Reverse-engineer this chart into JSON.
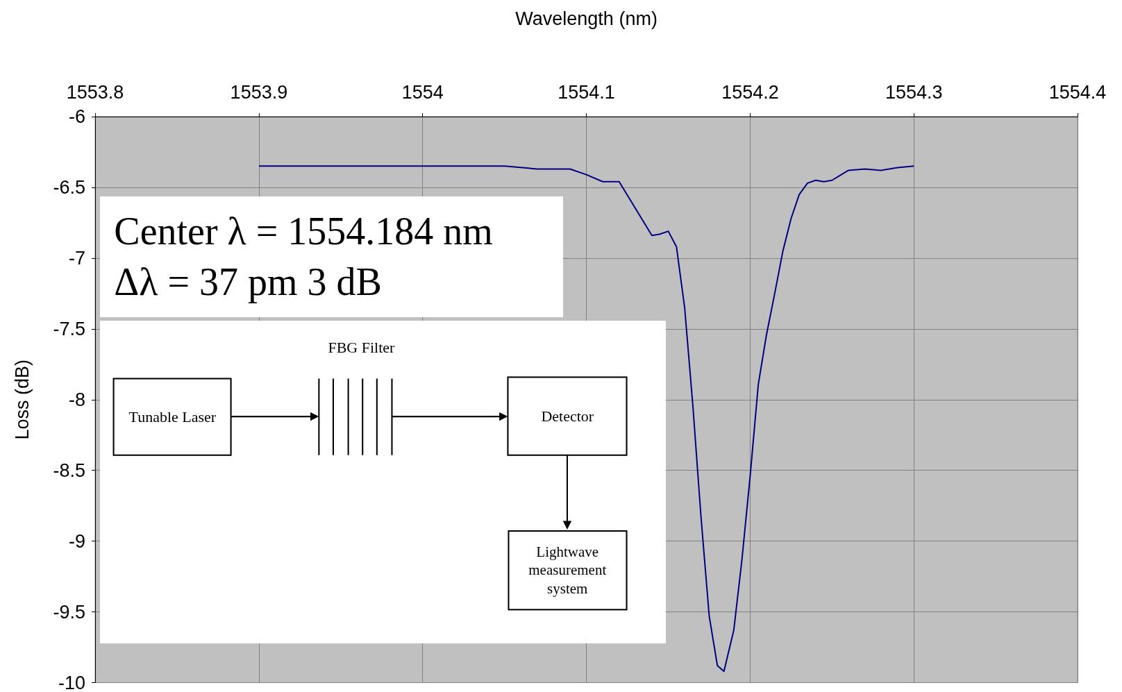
{
  "chart_data": {
    "type": "line",
    "xlabel": "Wavelength (nm)",
    "ylabel": "Loss (dB)",
    "xlim": [
      1553.8,
      1554.4
    ],
    "xticks": [
      1553.8,
      1553.9,
      1554,
      1554.1,
      1554.2,
      1554.3,
      1554.4
    ],
    "ylim": [
      -10,
      -6
    ],
    "yticks": [
      -10,
      -9.5,
      -9,
      -8.5,
      -8,
      -7.5,
      -7,
      -6.5,
      -6
    ],
    "grid": true,
    "marker": "none",
    "line_style": "solid",
    "series": [
      {
        "color": "#000080",
        "x": [
          1553.9,
          1553.95,
          1554,
          1554.05,
          1554.07,
          1554.09,
          1554.1,
          1554.11,
          1554.12,
          1554.13,
          1554.14,
          1554.145,
          1554.15,
          1554.155,
          1554.16,
          1554.165,
          1554.17,
          1554.175,
          1554.18,
          1554.184,
          1554.19,
          1554.195,
          1554.2,
          1554.205,
          1554.21,
          1554.215,
          1554.22,
          1554.225,
          1554.23,
          1554.235,
          1554.24,
          1554.245,
          1554.25,
          1554.26,
          1554.27,
          1554.28,
          1554.29,
          1554.3
        ],
        "values": [
          -6.35,
          -6.35,
          -6.35,
          -6.35,
          -6.37,
          -6.37,
          -6.41,
          -6.46,
          -6.46,
          -6.65,
          -6.84,
          -6.83,
          -6.81,
          -6.92,
          -7.35,
          -8.04,
          -8.83,
          -9.53,
          -9.88,
          -9.92,
          -9.63,
          -9.13,
          -8.54,
          -7.89,
          -7.54,
          -7.25,
          -6.95,
          -6.72,
          -6.55,
          -6.47,
          -6.45,
          -6.46,
          -6.45,
          -6.38,
          -6.37,
          -6.38,
          -6.36,
          -6.35
        ]
      }
    ],
    "annotations": [
      "Center λ = 1554.184 nm",
      "Δλ = 37 pm 3 dB",
      "FBG Filter",
      "Tunable Laser",
      "Detector",
      "Lightwave measurement system"
    ]
  }
}
